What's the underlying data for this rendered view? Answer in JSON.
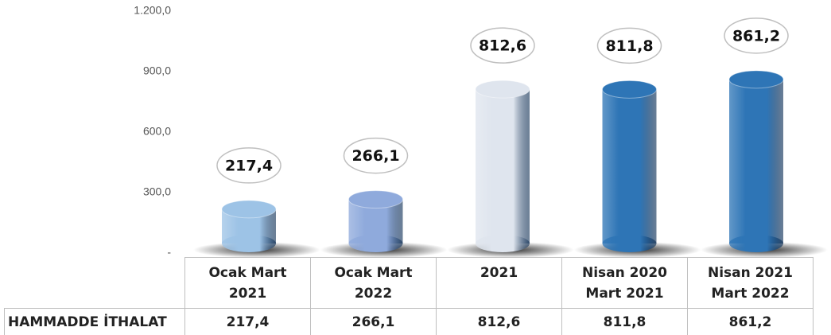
{
  "chart_data": {
    "type": "bar",
    "categories": [
      "Ocak Mart 2021",
      "Ocak Mart 2022",
      "2021",
      "Nisan 2020 Mart 2021",
      "Nisan 2021 Mart 2022"
    ],
    "series": [
      {
        "name": "HAMMADDE İTHALAT",
        "colors": [
          "#9dc3e6",
          "#8faadc",
          "#dfe5ee",
          "#2e75b6",
          "#2e75b6"
        ],
        "values": [
          217.4,
          266.1,
          812.6,
          811.8,
          861.2
        ],
        "value_labels": [
          "217,4",
          "266,1",
          "812,6",
          "811,8",
          "861,2"
        ]
      }
    ],
    "ylim": [
      0,
      1200
    ],
    "yticks": [
      {
        "value": 0,
        "label": "-"
      },
      {
        "value": 300,
        "label": "300,0"
      },
      {
        "value": 600,
        "label": "600,0"
      },
      {
        "value": 900,
        "label": "900,0"
      },
      {
        "value": 1200,
        "label": "1.200,0"
      }
    ]
  }
}
